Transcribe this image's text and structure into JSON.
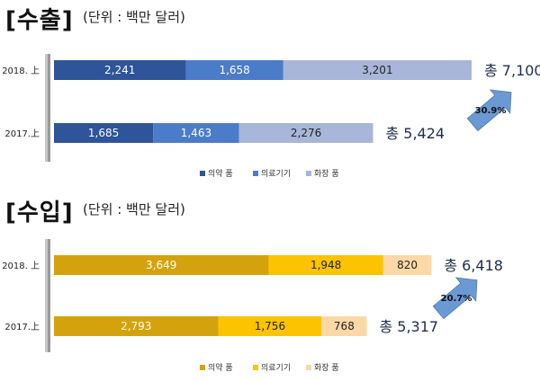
{
  "chart_data": [
    {
      "type": "bar",
      "orientation": "horizontal",
      "stacked": true,
      "title": "[수출]",
      "subtitle": "(단위 : 백만 달러)",
      "categories": [
        "2018. 上",
        "2017.上"
      ],
      "series": [
        {
          "name": "의약 품",
          "values": [
            2241,
            1685
          ],
          "labels": [
            "2,241",
            "1,685"
          ],
          "color": "#2e549a"
        },
        {
          "name": "의료기기",
          "values": [
            1658,
            1463
          ],
          "labels": [
            "1,658",
            "1,463"
          ],
          "color": "#4a7cc9"
        },
        {
          "name": "화장 품",
          "values": [
            3201,
            2276
          ],
          "labels": [
            "3,201",
            "2,276"
          ],
          "color": "#a8b6d9"
        }
      ],
      "totals": [
        "총 7,100",
        "총 5,424"
      ],
      "growth": "30.9%",
      "legend_position": "bottom"
    },
    {
      "type": "bar",
      "orientation": "horizontal",
      "stacked": true,
      "title": "[수입]",
      "subtitle": "(단위 : 백만 달러)",
      "categories": [
        "2018. 上",
        "2017.上"
      ],
      "series": [
        {
          "name": "의약 품",
          "values": [
            3649,
            2793
          ],
          "labels": [
            "3,649",
            "2,793"
          ],
          "color": "#d4a20c"
        },
        {
          "name": "의료기기",
          "values": [
            1948,
            1756
          ],
          "labels": [
            "1,948",
            "1,756"
          ],
          "color": "#fbc300"
        },
        {
          "name": "화장 품",
          "values": [
            820,
            768
          ],
          "labels": [
            "820",
            "768"
          ],
          "color": "#fcd8a7"
        }
      ],
      "totals": [
        "총 6,418",
        "총 5,317"
      ],
      "growth": "20.7%",
      "legend_position": "bottom"
    }
  ]
}
